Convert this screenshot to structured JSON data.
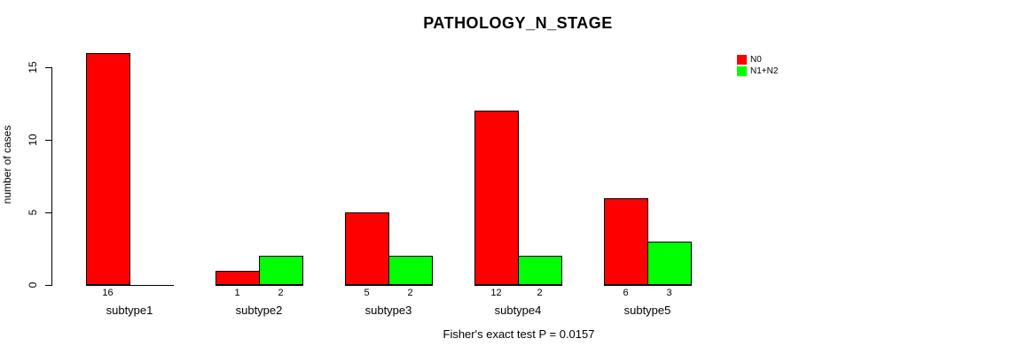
{
  "title": "PATHOLOGY_N_STAGE",
  "footer": "Fisher's exact test P = 0.0157",
  "colors": {
    "n0": "#ff0000",
    "n1n2": "#00ff00",
    "axis": "#000000",
    "background": "#ffffff"
  },
  "chart_data": {
    "type": "bar",
    "title": "PATHOLOGY_N_STAGE",
    "categories": [
      "subtype1",
      "subtype2",
      "subtype3",
      "subtype4",
      "subtype5"
    ],
    "series": [
      {
        "name": "N0",
        "color": "#ff0000",
        "values": [
          16,
          1,
          5,
          12,
          6
        ]
      },
      {
        "name": "N1+N2",
        "color": "#00ff00",
        "values": [
          0,
          2,
          2,
          2,
          3
        ]
      }
    ],
    "xlabel": "",
    "ylabel": "number of cases",
    "yticks": [
      0,
      5,
      10,
      15
    ],
    "ylim": [
      0,
      16
    ],
    "grid": false,
    "legend_position": "top-right",
    "bar_value_labels_shown": true,
    "zero_value_labels_hidden": true,
    "annotation": "Fisher's exact test P = 0.0157"
  }
}
